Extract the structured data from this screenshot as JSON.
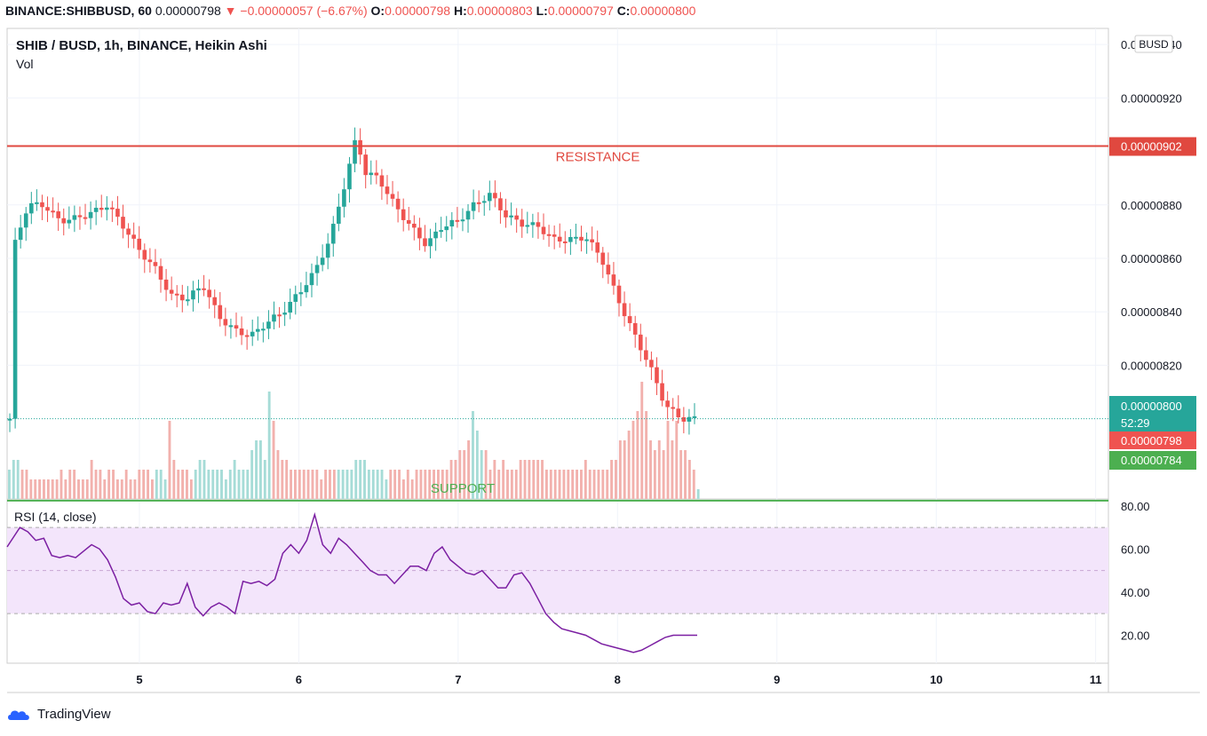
{
  "header": {
    "symbol": "BINANCE:SHIBBUSD, 60",
    "last": "0.00000798",
    "arrow": "▼",
    "change": "−0.00000057 (−6.67%)",
    "o_label": "O:",
    "o_value": "0.00000798",
    "h_label": "H:",
    "h_value": "0.00000803",
    "l_label": "L:",
    "l_value": "0.00000797",
    "c_label": "C:",
    "c_value": "0.00000800"
  },
  "legend": {
    "title": "SHIB / BUSD, 1h, BINANCE, Heikin Ashi",
    "vol": "Vol",
    "rsi": "RSI (14, close)",
    "currency_badge": "BUSD"
  },
  "brand": {
    "name": "TradingView"
  },
  "colors": {
    "up": "#26a69a",
    "down": "#ef5350",
    "resistance": "#e0483f",
    "support": "#4caf50",
    "rsi": "#7b1fa2",
    "rsi_band": "#f3e5fb"
  },
  "chart_data": [
    {
      "type": "candlestick",
      "title": "SHIB / BUSD, 1h, BINANCE, Heikin Ashi",
      "ylim": [
        7.7e-06,
        9.46e-06
      ],
      "y_ticks": [
        "0.00000940",
        "0.00000920",
        "0.00000880",
        "0.00000860",
        "0.00000840",
        "0.00000820"
      ],
      "x_ticks": [
        "5",
        "6",
        "7",
        "8",
        "9",
        "10",
        "11"
      ],
      "x_tick_values": [
        5,
        6,
        7,
        8,
        9,
        10,
        11
      ],
      "xlim": [
        4.17,
        11.08
      ],
      "levels": [
        {
          "name": "RESISTANCE",
          "value": 9.02e-06,
          "label": "0.00000902"
        },
        {
          "name": "SUPPORT",
          "value": 7.84e-06,
          "label": "0.00000784"
        }
      ],
      "current": {
        "value": 8e-06,
        "label": "0.00000800",
        "countdown": "52:29"
      },
      "last_close_label": "0.00000798",
      "close_path": [
        [
          4.2,
          8.62
        ],
        [
          4.3,
          8.8
        ],
        [
          4.4,
          8.8
        ],
        [
          4.5,
          8.74
        ],
        [
          4.6,
          8.75
        ],
        [
          4.7,
          8.77
        ],
        [
          4.8,
          8.8
        ],
        [
          4.9,
          8.72
        ],
        [
          5.0,
          8.63
        ],
        [
          5.1,
          8.56
        ],
        [
          5.2,
          8.46
        ],
        [
          5.3,
          8.45
        ],
        [
          5.4,
          8.5
        ],
        [
          5.5,
          8.38
        ],
        [
          5.6,
          8.33
        ],
        [
          5.7,
          8.31
        ],
        [
          5.8,
          8.36
        ],
        [
          5.9,
          8.4
        ],
        [
          6.0,
          8.47
        ],
        [
          6.1,
          8.55
        ],
        [
          6.2,
          8.68
        ],
        [
          6.28,
          8.86
        ],
        [
          6.36,
          9.05
        ],
        [
          6.42,
          8.92
        ],
        [
          6.5,
          8.9
        ],
        [
          6.6,
          8.8
        ],
        [
          6.7,
          8.72
        ],
        [
          6.8,
          8.65
        ],
        [
          6.9,
          8.72
        ],
        [
          7.0,
          8.74
        ],
        [
          7.1,
          8.8
        ],
        [
          7.2,
          8.84
        ],
        [
          7.3,
          8.76
        ],
        [
          7.4,
          8.73
        ],
        [
          7.5,
          8.72
        ],
        [
          7.6,
          8.67
        ],
        [
          7.7,
          8.67
        ],
        [
          7.8,
          8.68
        ],
        [
          7.9,
          8.6
        ],
        [
          8.0,
          8.45
        ],
        [
          8.1,
          8.32
        ],
        [
          8.2,
          8.2
        ],
        [
          8.3,
          8.05
        ],
        [
          8.4,
          8.0
        ],
        [
          8.5,
          8.0
        ]
      ],
      "price_scale": 1e-06
    },
    {
      "type": "bar",
      "title": "Vol",
      "note": "volume histogram, relative units",
      "values": [
        3,
        4,
        4,
        3,
        3,
        2,
        2,
        2,
        2,
        2,
        2,
        2,
        3,
        2,
        3,
        3,
        2,
        2,
        2,
        4,
        3,
        3,
        2,
        3,
        3,
        2,
        2,
        3,
        2,
        2,
        3,
        3,
        3,
        2,
        3,
        3,
        2,
        8,
        4,
        3,
        3,
        3,
        2,
        3,
        4,
        4,
        3,
        3,
        3,
        3,
        2,
        3,
        4,
        3,
        3,
        3,
        5,
        6,
        6,
        4,
        11,
        8,
        5,
        4,
        4,
        3,
        3,
        3,
        3,
        3,
        3,
        3,
        2,
        3,
        3,
        3,
        3,
        3,
        3,
        3,
        4,
        4,
        4,
        3,
        3,
        3,
        3,
        2,
        3,
        3,
        3,
        2,
        3,
        2,
        3,
        3,
        3,
        3,
        3,
        3,
        3,
        3,
        4,
        4,
        5,
        5,
        6,
        9,
        7,
        5,
        5,
        3,
        4,
        3,
        4,
        3,
        3,
        3,
        4,
        4,
        4,
        4,
        4,
        4,
        3,
        3,
        3,
        3,
        3,
        3,
        3,
        3,
        3,
        4,
        3,
        3,
        3,
        3,
        3,
        4,
        4,
        6,
        6,
        7,
        8,
        9,
        12,
        9,
        6,
        5,
        6,
        5,
        8,
        6,
        8,
        5,
        5,
        4,
        3,
        1
      ],
      "down_flags": [
        0,
        0,
        0,
        1,
        1,
        1,
        1,
        1,
        1,
        1,
        1,
        1,
        1,
        1,
        1,
        1,
        1,
        1,
        1,
        1,
        1,
        1,
        1,
        1,
        1,
        1,
        1,
        1,
        1,
        1,
        1,
        1,
        1,
        1,
        0,
        0,
        0,
        1,
        1,
        1,
        1,
        1,
        1,
        0,
        0,
        0,
        0,
        0,
        0,
        0,
        0,
        0,
        0,
        0,
        0,
        0,
        0,
        0,
        0,
        0,
        0,
        1,
        1,
        1,
        1,
        1,
        1,
        1,
        1,
        1,
        1,
        1,
        1,
        1,
        1,
        1,
        0,
        0,
        0,
        0,
        0,
        0,
        0,
        0,
        0,
        0,
        0,
        0,
        1,
        1,
        1,
        1,
        1,
        1,
        1,
        1,
        1,
        1,
        1,
        1,
        1,
        1,
        1,
        1,
        1,
        1,
        1,
        0,
        0,
        0,
        1,
        1,
        1,
        1,
        1,
        1,
        1,
        1,
        1,
        1,
        1,
        1,
        1,
        1,
        1,
        1,
        1,
        1,
        1,
        1,
        1,
        1,
        1,
        1,
        1,
        1,
        1,
        1,
        1,
        1,
        1,
        1,
        1,
        1,
        1,
        1,
        1,
        1,
        1,
        1,
        1,
        1,
        1,
        1,
        1,
        1,
        1,
        1,
        1,
        0
      ]
    },
    {
      "type": "line",
      "title": "RSI (14, close)",
      "ylim": [
        7,
        82
      ],
      "y_ticks": [
        "80.00",
        "60.00",
        "40.00",
        "20.00"
      ],
      "y_tick_values": [
        80,
        60,
        40,
        20
      ],
      "band": [
        30,
        70
      ],
      "midline": 50,
      "x": [
        4.17,
        4.25,
        4.3,
        4.35,
        4.4,
        4.45,
        4.5,
        4.55,
        4.6,
        4.65,
        4.7,
        4.75,
        4.8,
        4.85,
        4.9,
        4.95,
        5.0,
        5.05,
        5.1,
        5.15,
        5.2,
        5.25,
        5.3,
        5.35,
        5.4,
        5.45,
        5.5,
        5.55,
        5.6,
        5.65,
        5.7,
        5.75,
        5.8,
        5.85,
        5.9,
        5.95,
        6.0,
        6.05,
        6.1,
        6.15,
        6.2,
        6.25,
        6.3,
        6.35,
        6.4,
        6.45,
        6.5,
        6.55,
        6.6,
        6.65,
        6.7,
        6.75,
        6.8,
        6.85,
        6.9,
        6.95,
        7.0,
        7.05,
        7.1,
        7.15,
        7.2,
        7.25,
        7.3,
        7.35,
        7.4,
        7.45,
        7.5,
        7.55,
        7.6,
        7.65,
        7.7,
        7.75,
        7.8,
        7.85,
        7.9,
        7.95,
        8.0,
        8.05,
        8.1,
        8.15,
        8.2,
        8.25,
        8.3,
        8.35,
        8.4,
        8.45,
        8.5
      ],
      "values": [
        61,
        70,
        68,
        64,
        65,
        57,
        56,
        57,
        56,
        59,
        62,
        60,
        55,
        47,
        37,
        34,
        35,
        31,
        30,
        35,
        34,
        35,
        44,
        33,
        29,
        33,
        35,
        33,
        30,
        45,
        44,
        45,
        43,
        46,
        58,
        62,
        58,
        64,
        76,
        62,
        58,
        65,
        62,
        58,
        54,
        50,
        48,
        48,
        44,
        48,
        52,
        52,
        50,
        58,
        61,
        55,
        52,
        49,
        48,
        50,
        46,
        42,
        42,
        48,
        49,
        44,
        37,
        30,
        26,
        23,
        22,
        21,
        20,
        18,
        16,
        15,
        14,
        13,
        12,
        13,
        15,
        17,
        19,
        20,
        20,
        20,
        20
      ]
    }
  ]
}
